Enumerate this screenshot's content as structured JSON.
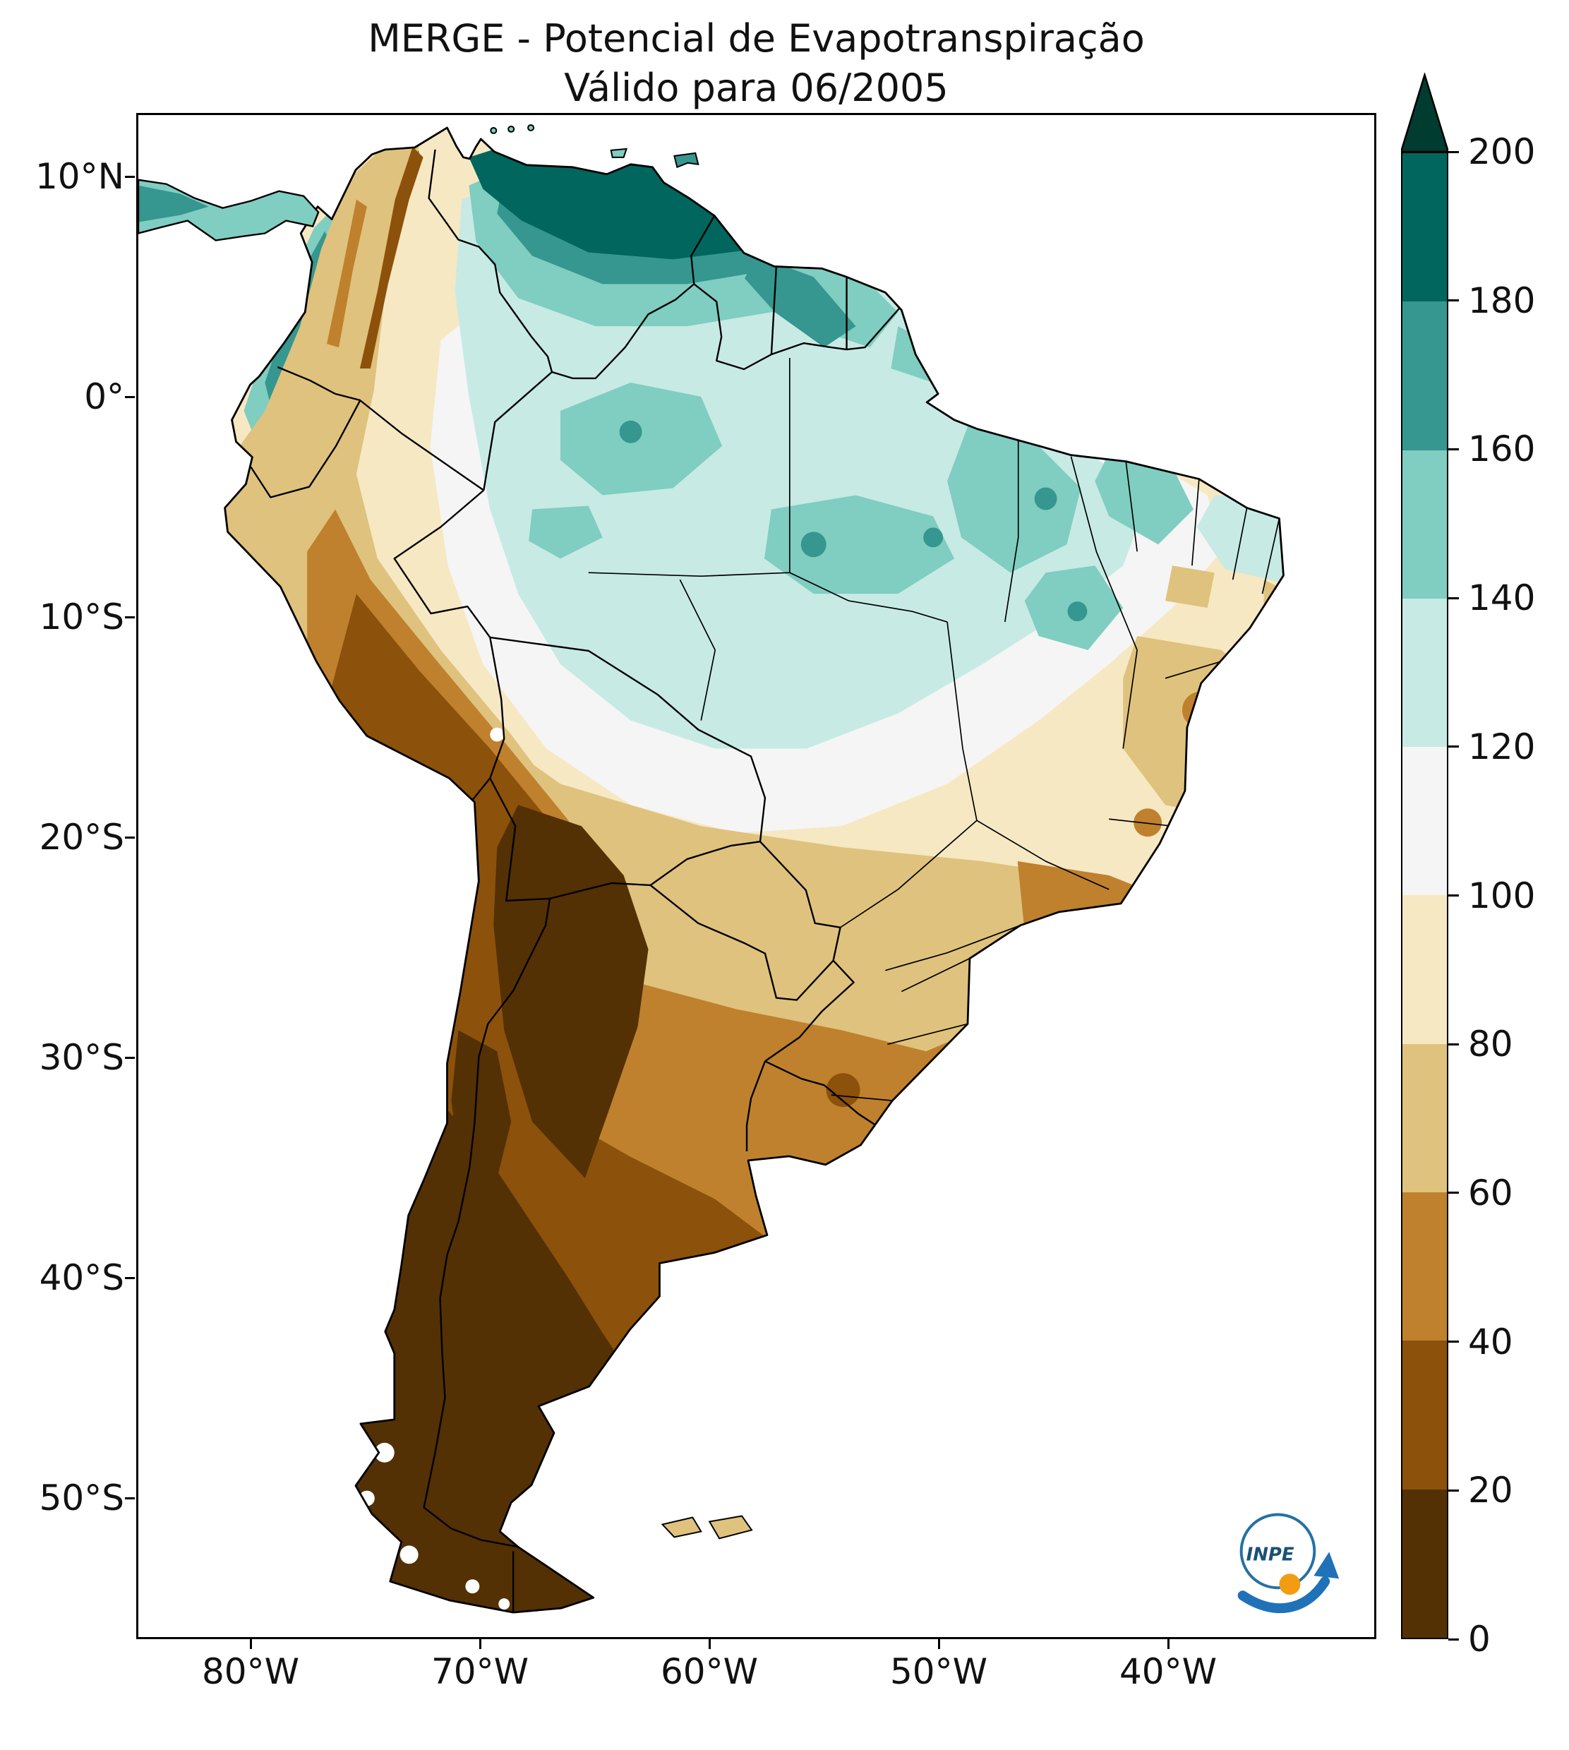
{
  "figure": {
    "title_line1": "MERGE - Potencial de Evapotranspiração",
    "title_line2": "Válido para 06/2005"
  },
  "axes": {
    "lat_ticks": [
      "10°N",
      "0°",
      "10°S",
      "20°S",
      "30°S",
      "40°S",
      "50°S"
    ],
    "lon_ticks": [
      "80°W",
      "70°W",
      "60°W",
      "50°W",
      "40°W"
    ]
  },
  "colorbar": {
    "tick_labels": [
      "0",
      "20",
      "40",
      "60",
      "80",
      "100",
      "120",
      "140",
      "160",
      "180",
      "200"
    ],
    "levels": [
      0,
      20,
      40,
      60,
      80,
      100,
      120,
      140,
      160,
      180,
      200
    ],
    "colors_bottom_to_top": [
      "#543005",
      "#8c510a",
      "#bf812d",
      "#dfc27d",
      "#f6e8c3",
      "#f5f5f5",
      "#c7eae5",
      "#80cdc1",
      "#35978f",
      "#01665e"
    ],
    "over_color": "#003c30",
    "extend": "max"
  },
  "logo": {
    "label": "INPE"
  },
  "chart_data": {
    "type": "heatmap",
    "title": "MERGE - Potencial de Evapotranspiração",
    "subtitle": "Válido para 06/2005",
    "map_region": "South America",
    "lon_ticks": [
      "80°W",
      "70°W",
      "60°W",
      "50°W",
      "40°W"
    ],
    "lat_ticks": [
      "10°N",
      "0°",
      "10°S",
      "20°S",
      "30°S",
      "40°S",
      "50°S"
    ],
    "colorbar_levels": [
      0,
      20,
      40,
      60,
      80,
      100,
      120,
      140,
      160,
      180,
      200
    ],
    "colorbar_colors": [
      "#543005",
      "#8c510a",
      "#bf812d",
      "#dfc27d",
      "#f6e8c3",
      "#f5f5f5",
      "#c7eae5",
      "#80cdc1",
      "#35978f",
      "#01665e"
    ],
    "colorbar_over_color": "#003c30",
    "value_pattern": [
      {
        "region": "Northern Venezuela / Colombia Caribbean coast",
        "value_range": "160-200+"
      },
      {
        "region": "Amazon basin and Guianas",
        "value_range": "100-160"
      },
      {
        "region": "Central and Northeast Brazil",
        "value_range": "60-100"
      },
      {
        "region": "Andes cordillera / Altiplano",
        "value_range": "0-40"
      },
      {
        "region": "Central Argentina / Uruguay",
        "value_range": "20-60"
      },
      {
        "region": "Patagonia and southern Chile",
        "value_range": "0-20"
      }
    ]
  }
}
